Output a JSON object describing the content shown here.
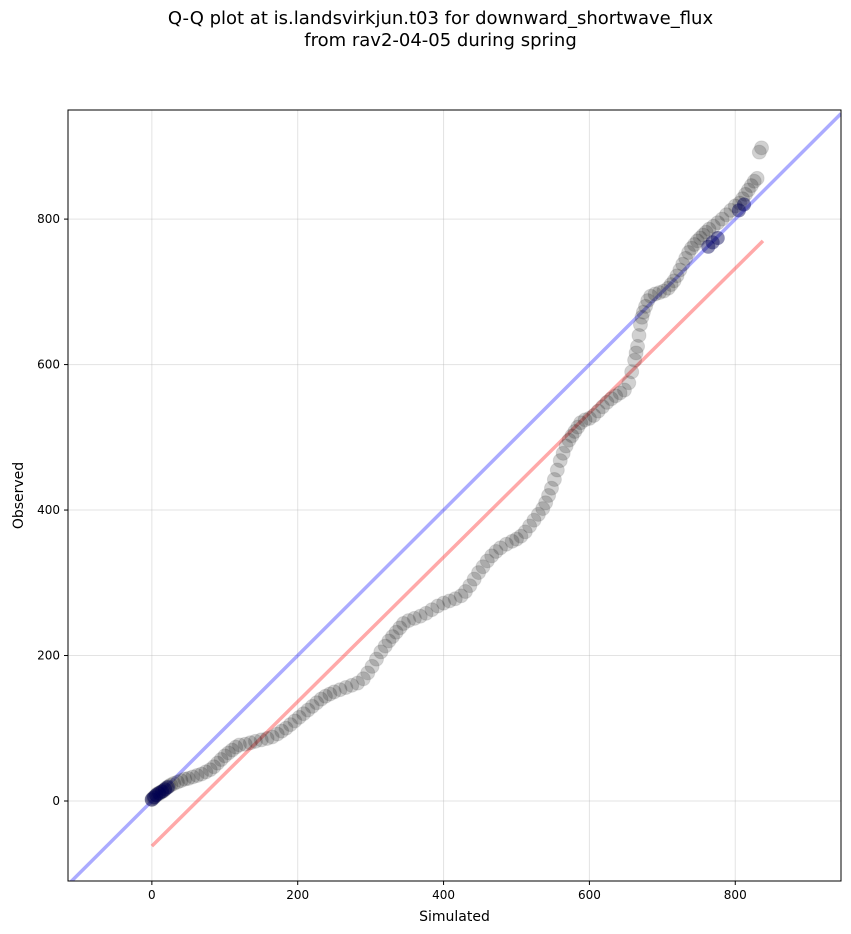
{
  "chart_data": {
    "type": "scatter",
    "title_line1": "Q-Q plot at is.landsvirkjun.t03 for downward_shortwave_flux",
    "title_line2": "from rav2-04-05 during spring",
    "xlabel": "Simulated",
    "ylabel": "Observed",
    "xlim": [
      -115,
      945
    ],
    "ylim": [
      -110,
      950
    ],
    "xticks": [
      0,
      200,
      400,
      600,
      800
    ],
    "yticks": [
      0,
      200,
      400,
      600,
      800
    ],
    "grid": true,
    "reference_line": {
      "name": "1:1",
      "color": "#0000ff",
      "points": [
        [
          -115,
          -115
        ],
        [
          945,
          945
        ]
      ]
    },
    "fit_line": {
      "name": "regression",
      "color": "#ff3333",
      "points": [
        [
          0,
          -62
        ],
        [
          838,
          770
        ]
      ]
    },
    "point_color": "#000000",
    "point_opacity": 0.18,
    "points": [
      [
        0,
        2
      ],
      [
        2,
        4
      ],
      [
        4,
        6
      ],
      [
        6,
        8
      ],
      [
        8,
        10
      ],
      [
        10,
        10
      ],
      [
        12,
        12
      ],
      [
        14,
        13
      ],
      [
        16,
        14
      ],
      [
        18,
        16
      ],
      [
        20,
        18
      ],
      [
        23,
        20
      ],
      [
        26,
        22
      ],
      [
        30,
        24
      ],
      [
        35,
        26
      ],
      [
        40,
        28
      ],
      [
        45,
        30
      ],
      [
        50,
        31
      ],
      [
        56,
        33
      ],
      [
        62,
        35
      ],
      [
        68,
        37
      ],
      [
        74,
        40
      ],
      [
        80,
        43
      ],
      [
        85,
        47
      ],
      [
        90,
        52
      ],
      [
        95,
        57
      ],
      [
        100,
        62
      ],
      [
        105,
        66
      ],
      [
        110,
        70
      ],
      [
        115,
        74
      ],
      [
        120,
        77
      ],
      [
        128,
        78
      ],
      [
        135,
        80
      ],
      [
        142,
        82
      ],
      [
        150,
        84
      ],
      [
        158,
        86
      ],
      [
        165,
        88
      ],
      [
        172,
        92
      ],
      [
        178,
        96
      ],
      [
        184,
        100
      ],
      [
        190,
        105
      ],
      [
        196,
        110
      ],
      [
        202,
        115
      ],
      [
        208,
        120
      ],
      [
        214,
        125
      ],
      [
        220,
        130
      ],
      [
        226,
        135
      ],
      [
        232,
        140
      ],
      [
        238,
        144
      ],
      [
        244,
        147
      ],
      [
        250,
        150
      ],
      [
        258,
        153
      ],
      [
        266,
        156
      ],
      [
        274,
        159
      ],
      [
        282,
        162
      ],
      [
        290,
        168
      ],
      [
        296,
        176
      ],
      [
        302,
        185
      ],
      [
        308,
        195
      ],
      [
        314,
        205
      ],
      [
        320,
        213
      ],
      [
        325,
        220
      ],
      [
        330,
        226
      ],
      [
        335,
        232
      ],
      [
        340,
        238
      ],
      [
        345,
        244
      ],
      [
        352,
        248
      ],
      [
        360,
        251
      ],
      [
        368,
        254
      ],
      [
        376,
        258
      ],
      [
        384,
        263
      ],
      [
        392,
        268
      ],
      [
        400,
        272
      ],
      [
        408,
        275
      ],
      [
        416,
        278
      ],
      [
        424,
        282
      ],
      [
        430,
        288
      ],
      [
        436,
        296
      ],
      [
        442,
        305
      ],
      [
        448,
        314
      ],
      [
        454,
        322
      ],
      [
        460,
        330
      ],
      [
        466,
        337
      ],
      [
        472,
        343
      ],
      [
        478,
        348
      ],
      [
        486,
        353
      ],
      [
        494,
        357
      ],
      [
        500,
        360
      ],
      [
        506,
        364
      ],
      [
        512,
        370
      ],
      [
        518,
        378
      ],
      [
        524,
        386
      ],
      [
        530,
        394
      ],
      [
        536,
        402
      ],
      [
        540,
        410
      ],
      [
        544,
        420
      ],
      [
        548,
        430
      ],
      [
        552,
        442
      ],
      [
        556,
        455
      ],
      [
        560,
        468
      ],
      [
        564,
        478
      ],
      [
        568,
        488
      ],
      [
        572,
        496
      ],
      [
        576,
        502
      ],
      [
        580,
        508
      ],
      [
        584,
        514
      ],
      [
        588,
        520
      ],
      [
        594,
        524
      ],
      [
        600,
        526
      ],
      [
        606,
        530
      ],
      [
        612,
        536
      ],
      [
        618,
        542
      ],
      [
        624,
        548
      ],
      [
        630,
        553
      ],
      [
        636,
        557
      ],
      [
        642,
        561
      ],
      [
        648,
        565
      ],
      [
        654,
        575
      ],
      [
        658,
        590
      ],
      [
        662,
        606
      ],
      [
        664,
        616
      ],
      [
        666,
        625
      ],
      [
        668,
        640
      ],
      [
        670,
        655
      ],
      [
        672,
        665
      ],
      [
        674,
        672
      ],
      [
        677,
        680
      ],
      [
        680,
        688
      ],
      [
        684,
        694
      ],
      [
        690,
        697
      ],
      [
        696,
        699
      ],
      [
        702,
        701
      ],
      [
        708,
        705
      ],
      [
        712,
        710
      ],
      [
        716,
        715
      ],
      [
        720,
        722
      ],
      [
        724,
        730
      ],
      [
        728,
        738
      ],
      [
        732,
        746
      ],
      [
        736,
        754
      ],
      [
        740,
        760
      ],
      [
        744,
        765
      ],
      [
        748,
        770
      ],
      [
        752,
        774
      ],
      [
        756,
        778
      ],
      [
        760,
        782
      ],
      [
        764,
        786
      ],
      [
        770,
        790
      ],
      [
        776,
        795
      ],
      [
        782,
        800
      ],
      [
        788,
        806
      ],
      [
        794,
        812
      ],
      [
        800,
        818
      ],
      [
        806,
        822
      ],
      [
        810,
        828
      ],
      [
        814,
        834
      ],
      [
        818,
        840
      ],
      [
        822,
        846
      ],
      [
        826,
        852
      ],
      [
        830,
        856
      ],
      [
        833,
        892
      ],
      [
        836,
        898
      ]
    ],
    "dark_points": [
      [
        0,
        2
      ],
      [
        3,
        5
      ],
      [
        6,
        8
      ],
      [
        10,
        11
      ],
      [
        14,
        13
      ],
      [
        18,
        16
      ],
      [
        22,
        19
      ],
      [
        763,
        762
      ],
      [
        769,
        768
      ],
      [
        776,
        774
      ],
      [
        805,
        812
      ],
      [
        812,
        820
      ]
    ]
  }
}
